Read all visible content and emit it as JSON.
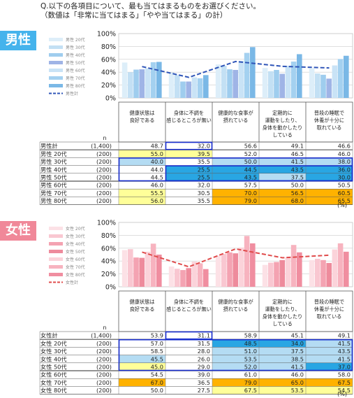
{
  "question": {
    "line1": "Q.以下の各項目について、最も当てはまるものをお選びください。",
    "line2": "（数値は「非常に当てはまる」「やや当てはまる」の計）"
  },
  "unit": "(%)",
  "n_label": "n",
  "categories": [
    "健康状態は\n良好である",
    "身体に不調を\n感じるところが無い",
    "健康的な食事が\n摂れている",
    "定期的に\n運動をしたり、\n身体を動かしたり\nしている",
    "普段の睡眠で\n休養が十分に\n取れている"
  ],
  "chart_data": [
    {
      "type": "bar",
      "panel": "男性",
      "ylim": [
        0,
        100
      ],
      "yticks": [
        "0%",
        "10%",
        "20%",
        "30%",
        "40%",
        "50%",
        "60%",
        "70%",
        "80%",
        "90%",
        "100%"
      ],
      "categories": [
        "健康状態は良好である",
        "身体に不調を感じるところが無い",
        "健康的な食事が摂れている",
        "定期的に運動をしたり、身体を動かしたりしている",
        "普段の睡眠で休養が十分に取れている"
      ],
      "series": [
        {
          "name": "男性 20代",
          "n": "(200)",
          "values": [
            55.0,
            39.5,
            52.0,
            46.5,
            46.0
          ],
          "color": "#ddeef9"
        },
        {
          "name": "男性 30代",
          "n": "(200)",
          "values": [
            40.0,
            35.5,
            50.0,
            41.5,
            38.0
          ],
          "color": "#c3e0f4"
        },
        {
          "name": "男性 40代",
          "n": "(200)",
          "values": [
            44.0,
            25.5,
            44.5,
            43.5,
            36.0
          ],
          "color": "#9fcdee"
        },
        {
          "name": "男性 50代",
          "n": "(200)",
          "values": [
            44.5,
            25.5,
            43.5,
            37.5,
            30.0
          ],
          "color": "#9fb4e6"
        },
        {
          "name": "男性 60代",
          "n": "(200)",
          "values": [
            46.0,
            32.0,
            57.5,
            50.0,
            50.5
          ],
          "color": "#c9e3f6"
        },
        {
          "name": "男性 70代",
          "n": "(200)",
          "values": [
            55.5,
            30.5,
            70.0,
            56.5,
            60.5
          ],
          "color": "#a4d1f0"
        },
        {
          "name": "男性 80代",
          "n": "(200)",
          "values": [
            56.0,
            35.5,
            79.0,
            68.0,
            65.5
          ],
          "color": "#7ab8e6"
        }
      ],
      "total": {
        "name": "男性計",
        "legend": "男性計",
        "n": "(1,400)",
        "values": [
          48.7,
          32.0,
          56.6,
          49.1,
          46.6
        ],
        "color": "#2f55b8"
      },
      "cell_colors": [
        [
          "#ffff99",
          "#ffff99",
          "",
          "",
          ""
        ],
        [
          "#b4dcf3",
          "",
          "#b4dcf3",
          "#b4dcf3",
          "#b4dcf3"
        ],
        [
          "",
          "#29a6e3",
          "#29a6e3",
          "#29a6e3",
          "#29a6e3"
        ],
        [
          "",
          "#29a6e3",
          "#29a6e3",
          "#b4dcf3",
          "#29a6e3"
        ],
        [
          "",
          "",
          "",
          "",
          ""
        ],
        [
          "#ffff99",
          "",
          "#ffb200",
          "#ffb200",
          "#ffb200"
        ],
        [
          "#ffff99",
          "",
          "#ffb200",
          "#ffb200",
          "#ffb200"
        ]
      ]
    },
    {
      "type": "bar",
      "panel": "女性",
      "ylim": [
        0,
        100
      ],
      "yticks": [
        "0%",
        "10%",
        "20%",
        "30%",
        "40%",
        "50%",
        "60%",
        "70%",
        "80%",
        "90%",
        "100%"
      ],
      "categories": [
        "健康状態は良好である",
        "身体に不調を感じるところが無い",
        "健康的な食事が摂れている",
        "定期的に運動をしたり、身体を動かしたりしている",
        "普段の睡眠で休養が十分に取れている"
      ],
      "series": [
        {
          "name": "女性 20代",
          "n": "(200)",
          "values": [
            57.0,
            31.5,
            48.5,
            34.0,
            41.5
          ],
          "color": "#fce1e6"
        },
        {
          "name": "女性 30代",
          "n": "(200)",
          "values": [
            58.5,
            28.0,
            51.0,
            37.5,
            43.5
          ],
          "color": "#f9c7d1"
        },
        {
          "name": "女性 40代",
          "n": "(200)",
          "values": [
            45.5,
            26.0,
            53.5,
            38.5,
            41.5
          ],
          "color": "#f4a3b2"
        },
        {
          "name": "女性 50代",
          "n": "(200)",
          "values": [
            45.0,
            29.0,
            52.0,
            41.5,
            37.0
          ],
          "color": "#ee8b9c"
        },
        {
          "name": "女性 60代",
          "n": "(200)",
          "values": [
            54.5,
            39.0,
            61.0,
            46.0,
            58.0
          ],
          "color": "#fbd3da"
        },
        {
          "name": "女性 70代",
          "n": "(200)",
          "values": [
            67.0,
            36.5,
            79.0,
            65.0,
            67.5
          ],
          "color": "#f7b3bf"
        },
        {
          "name": "女性 80代",
          "n": "(200)",
          "values": [
            50.0,
            27.5,
            67.5,
            53.5,
            54.5
          ],
          "color": "#f08ea0"
        }
      ],
      "total": {
        "name": "女性計",
        "legend": "女性計",
        "n": "(1,400)",
        "values": [
          53.9,
          31.1,
          58.9,
          45.1,
          49.1
        ],
        "color": "#e04b4b"
      },
      "cell_colors": [
        [
          "",
          "",
          "#29a6e3",
          "#29a6e3",
          "#b4dcf3"
        ],
        [
          "",
          "",
          "#b4dcf3",
          "#b4dcf3",
          "#b4dcf3"
        ],
        [
          "#b4dcf3",
          "",
          "#b4dcf3",
          "#b4dcf3",
          "#b4dcf3"
        ],
        [
          "#ffff99",
          "",
          "#b4dcf3",
          "#b4dcf3",
          "#29a6e3"
        ],
        [
          "",
          "",
          "",
          "",
          ""
        ],
        [
          "#ffb200",
          "",
          "#ffb200",
          "#ffb200",
          "#ffb200"
        ],
        [
          "",
          "",
          "#ffff99",
          "#ffff99",
          "#ffff99"
        ]
      ]
    }
  ]
}
